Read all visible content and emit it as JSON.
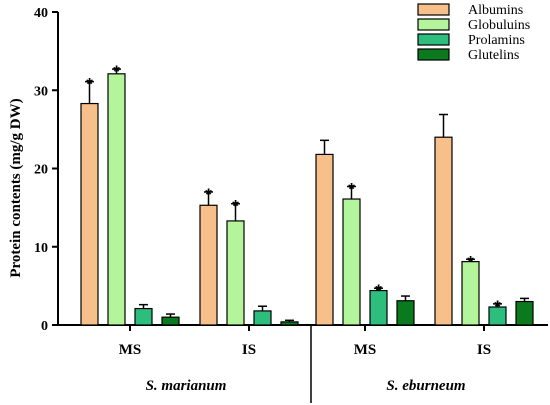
{
  "chart_data": {
    "type": "bar",
    "title": "",
    "ylabel": "Protein contents (mg/g DW)",
    "xlabel": "",
    "ylim": [
      0,
      40
    ],
    "yticks": [
      0,
      10,
      20,
      30,
      40
    ],
    "groups": [
      {
        "label": "S. marianum",
        "categories": [
          "MS",
          "IS"
        ]
      },
      {
        "label": "S. eburneum",
        "categories": [
          "MS",
          "IS"
        ]
      }
    ],
    "categories": [
      "MS",
      "IS",
      "MS",
      "IS"
    ],
    "series": [
      {
        "name": "Albumins",
        "color": "#F7C08A",
        "values": [
          28.3,
          15.3,
          21.8,
          24.0
        ],
        "errors": [
          2.8,
          1.7,
          1.8,
          2.9
        ],
        "significant": [
          true,
          true,
          false,
          false
        ]
      },
      {
        "name": "Globuluins",
        "color": "#B4F59C",
        "values": [
          32.1,
          13.3,
          16.1,
          8.1
        ],
        "errors": [
          0.6,
          2.2,
          1.6,
          0.3
        ],
        "significant": [
          true,
          true,
          true,
          true
        ]
      },
      {
        "name": "Prolamins",
        "color": "#2DBE7E",
        "values": [
          2.1,
          1.8,
          4.4,
          2.3
        ],
        "errors": [
          0.5,
          0.6,
          0.3,
          0.4
        ],
        "significant": [
          false,
          false,
          true,
          true
        ]
      },
      {
        "name": "Glutelins",
        "color": "#0B7A1E",
        "values": [
          1.0,
          0.4,
          3.1,
          3.0
        ],
        "errors": [
          0.4,
          0.2,
          0.6,
          0.4
        ],
        "significant": [
          false,
          false,
          false,
          false
        ]
      }
    ],
    "significance_marker": "*",
    "legend_position": "top-right",
    "grid": false
  }
}
